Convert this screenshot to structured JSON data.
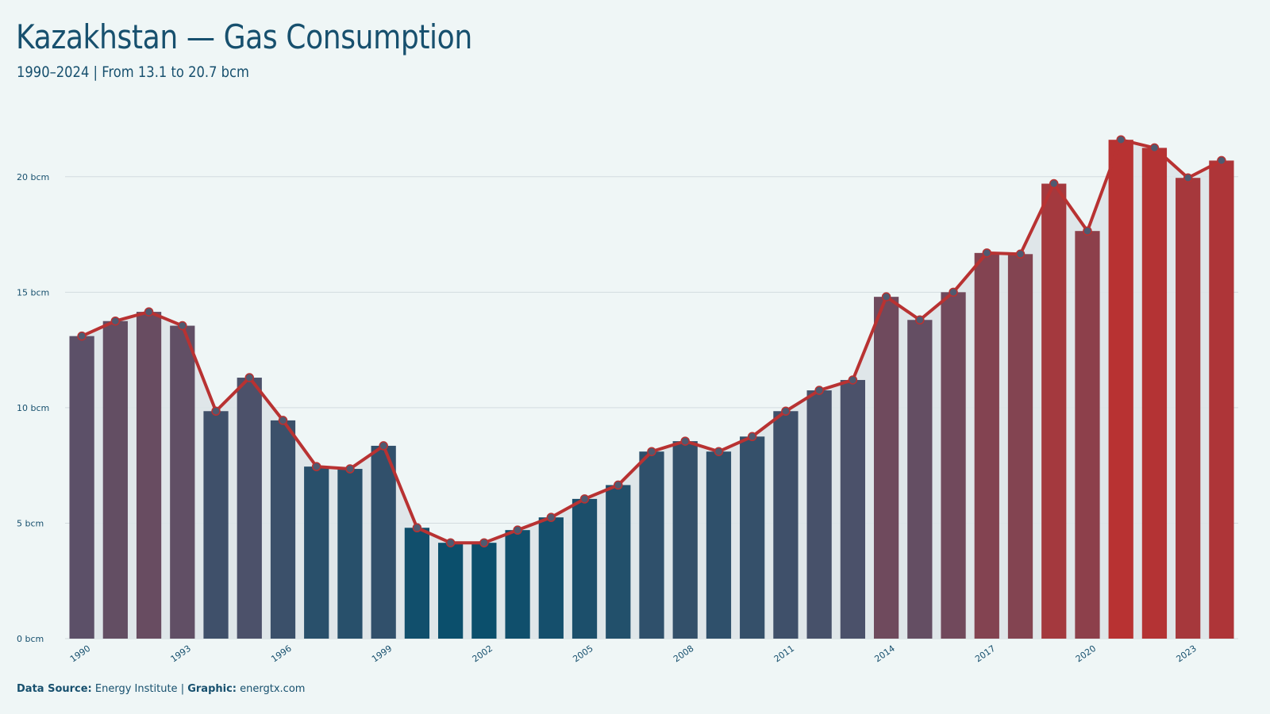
{
  "title": "Kazakhstan — Gas Consumption",
  "subtitle": "1990–2024 | From 13.1 to 20.7 bcm",
  "footer": {
    "source_label": "Data Source:",
    "source_value": "Energy Institute",
    "separator": "|",
    "graphic_label": "Graphic:",
    "graphic_value": "energtx.com"
  },
  "colors": {
    "low": "#0b4f6c",
    "mid": "#5a5169",
    "high": "#b83232",
    "line": "#b83232",
    "marker": "#4f5a70",
    "area": "#dde4e8",
    "grid": "#d3dcdf",
    "text": "#17506e"
  },
  "chart_data": {
    "type": "bar",
    "unit": "bcm",
    "x": [
      1990,
      1991,
      1992,
      1993,
      1994,
      1995,
      1996,
      1997,
      1998,
      1999,
      2000,
      2001,
      2002,
      2003,
      2004,
      2005,
      2006,
      2007,
      2008,
      2009,
      2010,
      2011,
      2012,
      2013,
      2014,
      2015,
      2016,
      2017,
      2018,
      2019,
      2020,
      2021,
      2022,
      2023,
      2024
    ],
    "values": [
      13.1,
      13.75,
      14.15,
      13.55,
      9.85,
      11.3,
      9.45,
      7.45,
      7.35,
      8.35,
      4.8,
      4.15,
      4.15,
      4.7,
      5.25,
      6.05,
      6.65,
      8.1,
      8.55,
      8.1,
      8.75,
      9.85,
      10.75,
      11.2,
      14.8,
      13.8,
      15.0,
      16.7,
      16.65,
      19.7,
      17.65,
      21.6,
      21.25,
      19.95,
      20.7
    ],
    "y_ticks": [
      0,
      5,
      10,
      15,
      20
    ],
    "y_tick_labels": [
      "0 bcm",
      "5 bcm",
      "10 bcm",
      "15 bcm",
      "20 bcm"
    ],
    "x_tick_labels": [
      "1990",
      "1993",
      "1996",
      "1999",
      "2002",
      "2005",
      "2008",
      "2011",
      "2014",
      "2017",
      "2020",
      "2023"
    ],
    "ylim": [
      0,
      22.5
    ],
    "grid": true,
    "overlay_line": true,
    "area_fill": true
  }
}
